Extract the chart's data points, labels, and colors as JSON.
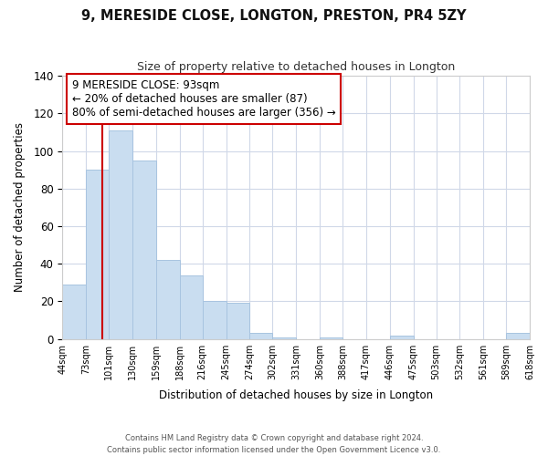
{
  "title": "9, MERESIDE CLOSE, LONGTON, PRESTON, PR4 5ZY",
  "subtitle": "Size of property relative to detached houses in Longton",
  "xlabel": "Distribution of detached houses by size in Longton",
  "ylabel": "Number of detached properties",
  "bar_edges": [
    44,
    73,
    101,
    130,
    159,
    188,
    216,
    245,
    274,
    302,
    331,
    360,
    388,
    417,
    446,
    475,
    503,
    532,
    561,
    589,
    618
  ],
  "bar_heights": [
    29,
    90,
    111,
    95,
    42,
    34,
    20,
    19,
    3,
    1,
    0,
    1,
    0,
    0,
    2,
    0,
    0,
    0,
    0,
    3
  ],
  "bar_color": "#c9ddf0",
  "bar_edge_color": "#a8c4e0",
  "vline_x": 93,
  "vline_color": "#cc0000",
  "ylim": [
    0,
    140
  ],
  "annotation_lines": [
    "9 MERESIDE CLOSE: 93sqm",
    "← 20% of detached houses are smaller (87)",
    "80% of semi-detached houses are larger (356) →"
  ],
  "footer_line1": "Contains HM Land Registry data © Crown copyright and database right 2024.",
  "footer_line2": "Contains public sector information licensed under the Open Government Licence v3.0.",
  "tick_labels": [
    "44sqm",
    "73sqm",
    "101sqm",
    "130sqm",
    "159sqm",
    "188sqm",
    "216sqm",
    "245sqm",
    "274sqm",
    "302sqm",
    "331sqm",
    "360sqm",
    "388sqm",
    "417sqm",
    "446sqm",
    "475sqm",
    "503sqm",
    "532sqm",
    "561sqm",
    "589sqm",
    "618sqm"
  ],
  "background_color": "#ffffff",
  "grid_color": "#d0d8e8",
  "yticks": [
    0,
    20,
    40,
    60,
    80,
    100,
    120,
    140
  ]
}
